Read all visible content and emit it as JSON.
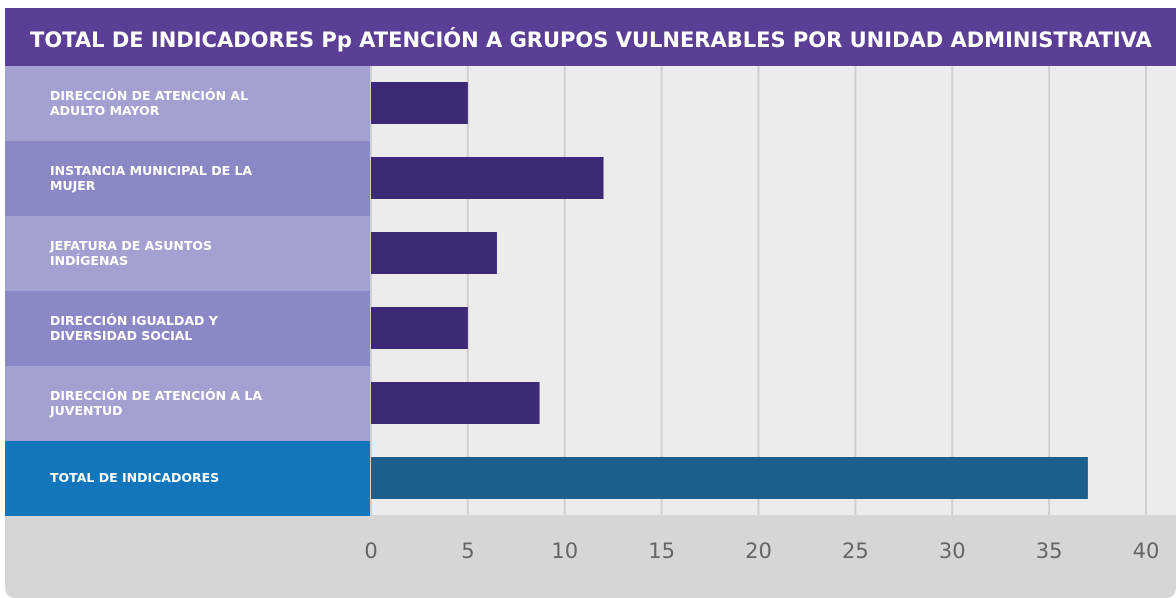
{
  "chart_data": {
    "type": "bar",
    "orientation": "horizontal",
    "title": "TOTAL DE INDICADORES Pp ATENCIÓN A GRUPOS VULNERABLES POR UNIDAD ADMINISTRATIVA",
    "categories": [
      "DIRECCIÓN DE ATENCIÓN AL ADULTO MAYOR",
      "INSTANCIA MUNICIPAL DE LA MUJER",
      "JEFATURA DE ASUNTOS INDÍGENAS",
      "DIRECCIÓN IGUALDAD Y DIVERSIDAD SOCIAL",
      "DIRECCIÓN DE ATENCIÓN A LA JUVENTUD",
      "TOTAL DE INDICADORES"
    ],
    "values": [
      5,
      12,
      6.5,
      5,
      8.7,
      37
    ],
    "colors": [
      "#3d2a76",
      "#3d2a76",
      "#3d2a76",
      "#3d2a76",
      "#3d2a76",
      "#1b5f8d"
    ],
    "xlim": [
      0,
      40
    ],
    "xticks": [
      0,
      5,
      10,
      15,
      20,
      25,
      30,
      35,
      40
    ],
    "grid": true
  }
}
